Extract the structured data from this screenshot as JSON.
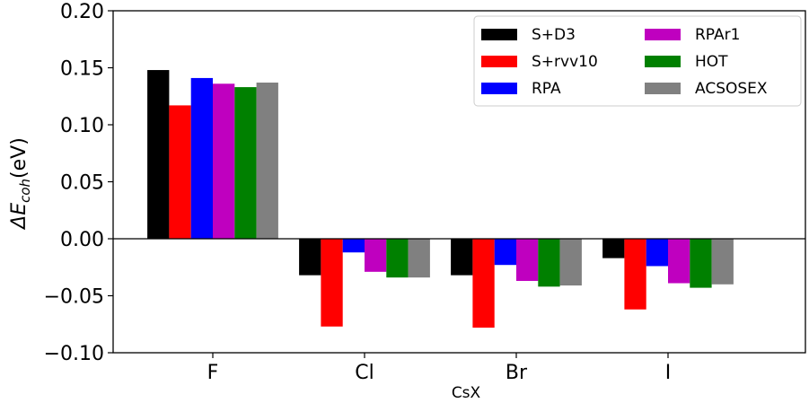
{
  "chart_data": {
    "type": "bar",
    "title": "",
    "xlabel": "CsX",
    "ylabel_prefix": "ΔE",
    "ylabel_sub": "coh",
    "ylabel_suffix": "(eV)",
    "ylim": [
      -0.1,
      0.2
    ],
    "yticks": [
      -0.1,
      -0.05,
      0.0,
      0.05,
      0.1,
      0.15,
      0.2
    ],
    "ytick_labels": [
      "−0.10",
      "−0.05",
      "0.00",
      "0.05",
      "0.10",
      "0.15",
      "0.20"
    ],
    "categories": [
      "F",
      "Cl",
      "Br",
      "I"
    ],
    "grid": false,
    "legend_position": "top-right",
    "series": [
      {
        "name": "S+D3",
        "color": "#000000",
        "values": [
          0.148,
          -0.032,
          -0.032,
          -0.017
        ]
      },
      {
        "name": "S+rvv10",
        "color": "#ff0000",
        "values": [
          0.117,
          -0.077,
          -0.078,
          -0.062
        ]
      },
      {
        "name": "RPA",
        "color": "#0000ff",
        "values": [
          0.141,
          -0.012,
          -0.023,
          -0.024
        ]
      },
      {
        "name": "RPAr1",
        "color": "#bf00bf",
        "values": [
          0.136,
          -0.029,
          -0.037,
          -0.039
        ]
      },
      {
        "name": "HOT",
        "color": "#008000",
        "values": [
          0.133,
          -0.034,
          -0.042,
          -0.043
        ]
      },
      {
        "name": "ACSOSEX",
        "color": "#808080",
        "values": [
          0.137,
          -0.034,
          -0.041,
          -0.04
        ]
      }
    ]
  }
}
